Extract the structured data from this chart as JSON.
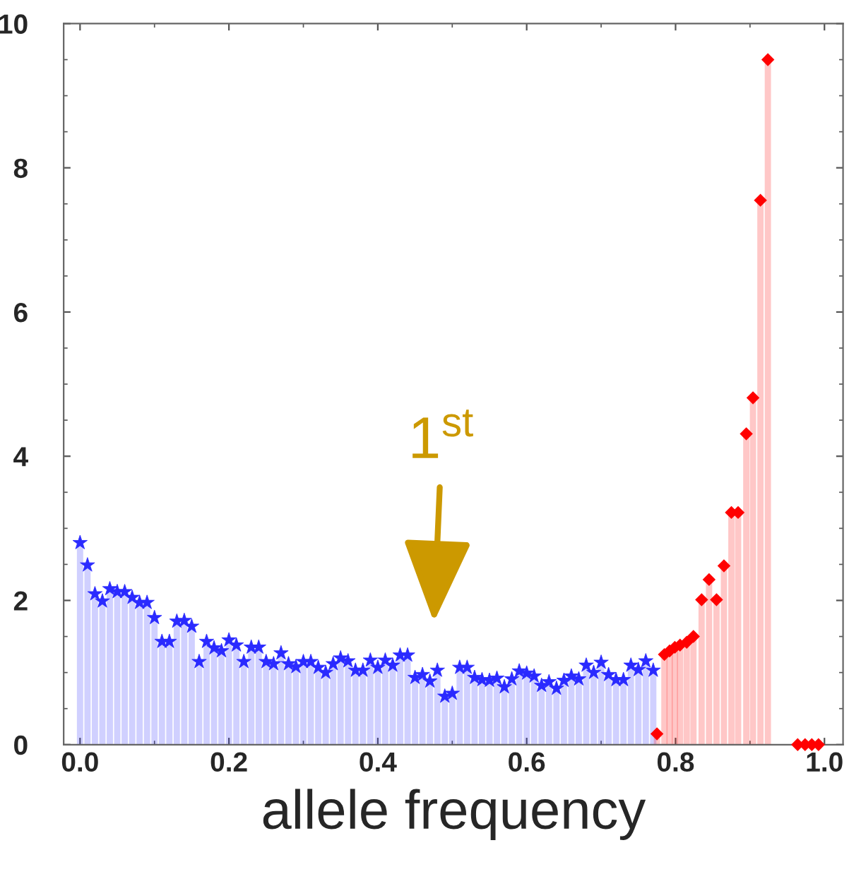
{
  "chart_data": {
    "type": "lollipop",
    "xlabel": "allele frequency",
    "series": [
      {
        "color": "#2a2aff",
        "marker": "star",
        "x": [
          0.0,
          0.01,
          0.02,
          0.03,
          0.04,
          0.05,
          0.06,
          0.07,
          0.08,
          0.09,
          0.1,
          0.11,
          0.12,
          0.13,
          0.14,
          0.15,
          0.16,
          0.17,
          0.18,
          0.19,
          0.2,
          0.21,
          0.22,
          0.23,
          0.24,
          0.25,
          0.26,
          0.27,
          0.28,
          0.29,
          0.3,
          0.31,
          0.32,
          0.33,
          0.34,
          0.35,
          0.36,
          0.37,
          0.38,
          0.39,
          0.4,
          0.41,
          0.42,
          0.43,
          0.44,
          0.45,
          0.46,
          0.47,
          0.48,
          0.49,
          0.5,
          0.51,
          0.52,
          0.53,
          0.54,
          0.55,
          0.56,
          0.57,
          0.58,
          0.59,
          0.6,
          0.61,
          0.62,
          0.63,
          0.64,
          0.65,
          0.66,
          0.67,
          0.68,
          0.69,
          0.7,
          0.71,
          0.72,
          0.73,
          0.74,
          0.75,
          0.76,
          0.77
        ],
        "values": [
          2.8,
          2.49,
          2.09,
          1.99,
          2.16,
          2.12,
          2.12,
          2.04,
          1.97,
          1.97,
          1.76,
          1.43,
          1.43,
          1.71,
          1.72,
          1.64,
          1.15,
          1.43,
          1.34,
          1.3,
          1.45,
          1.38,
          1.15,
          1.35,
          1.35,
          1.15,
          1.12,
          1.27,
          1.12,
          1.08,
          1.15,
          1.15,
          1.07,
          1.0,
          1.12,
          1.2,
          1.16,
          1.03,
          1.03,
          1.17,
          1.07,
          1.17,
          1.1,
          1.24,
          1.24,
          0.93,
          0.97,
          0.88,
          1.03,
          0.67,
          0.71,
          1.07,
          1.07,
          0.93,
          0.9,
          0.89,
          0.92,
          0.8,
          0.91,
          1.02,
          0.99,
          0.95,
          0.82,
          0.87,
          0.78,
          0.89,
          0.95,
          0.91,
          1.1,
          1.0,
          1.14,
          0.97,
          0.9,
          0.9,
          1.1,
          1.04,
          1.16,
          1.03
        ]
      },
      {
        "color": "#ff0000",
        "marker": "diamond",
        "x": [
          0.775,
          0.785,
          0.792,
          0.799,
          0.806,
          0.815,
          0.824,
          0.835,
          0.845,
          0.855,
          0.865,
          0.875,
          0.884,
          0.895,
          0.904,
          0.914,
          0.924,
          0.934,
          0.944,
          0.953,
          0.964,
          0.974,
          0.983,
          0.992
        ],
        "values": [
          0.15,
          1.25,
          1.3,
          1.35,
          1.38,
          1.42,
          1.5,
          2.01,
          2.29,
          2.01,
          2.48,
          3.22,
          3.22,
          4.31,
          4.81,
          7.55,
          9.5,
          null,
          null,
          null,
          0,
          0,
          0,
          0
        ]
      }
    ],
    "annotations": [
      "1$^{st}$"
    ],
    "xlim": [
      -0.022,
      1.025
    ],
    "ylim": [
      0,
      10
    ],
    "xticks": [
      {
        "value": 0.0,
        "label": "0.0"
      },
      {
        "value": 0.2,
        "label": "0.2"
      },
      {
        "value": 0.4,
        "label": "0.4"
      },
      {
        "value": 0.6,
        "label": "0.6"
      },
      {
        "value": 0.8,
        "label": "0.8"
      },
      {
        "value": 1.0,
        "label": "1.0"
      }
    ],
    "yticks": [
      0,
      2,
      4,
      6,
      8,
      10
    ],
    "grid": false,
    "legend": false
  }
}
